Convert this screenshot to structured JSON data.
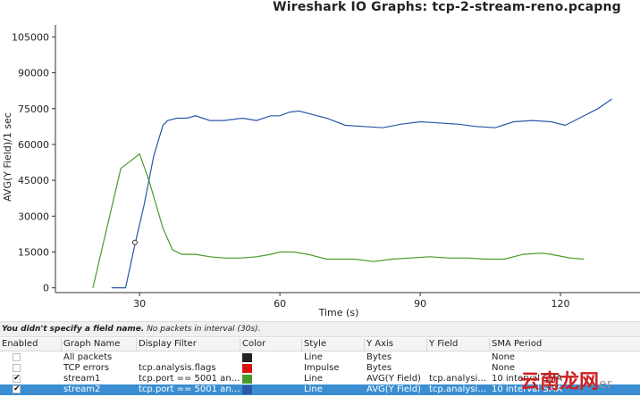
{
  "window": {
    "title": "Wireshark IO Graphs: tcp-2-stream-reno.pcapng"
  },
  "chart_data": {
    "type": "line",
    "xlabel": "Time (s)",
    "ylabel": "AVG(Y Field)/1 sec",
    "xlim": [
      12,
      137
    ],
    "ylim": [
      -2000,
      110000
    ],
    "x_ticks": [
      30,
      60,
      90,
      120
    ],
    "y_ticks": [
      0,
      15000,
      30000,
      45000,
      60000,
      75000,
      90000,
      105000
    ],
    "grid": false,
    "series": [
      {
        "name": "stream1",
        "color": "#4a9a2a",
        "x": [
          20,
          26,
          28,
          30,
          32,
          35,
          37,
          39,
          42,
          45,
          48,
          52,
          55,
          58,
          60,
          63,
          66,
          70,
          73,
          76,
          80,
          84,
          88,
          92,
          96,
          100,
          104,
          108,
          112,
          116,
          118,
          122,
          125
        ],
        "y": [
          0,
          50000,
          53000,
          56000,
          45000,
          25000,
          16000,
          14000,
          14000,
          13000,
          12500,
          12500,
          13000,
          14000,
          15000,
          15000,
          14000,
          12000,
          12000,
          12000,
          11000,
          12000,
          12500,
          13000,
          12500,
          12500,
          12000,
          12000,
          14000,
          14500,
          14000,
          12500,
          12000
        ]
      },
      {
        "name": "stream2",
        "color": "#2b58a8",
        "x": [
          24,
          27,
          29,
          31,
          33,
          35,
          36,
          38,
          40,
          42,
          45,
          48,
          52,
          55,
          58,
          60,
          62,
          64,
          66,
          68,
          70,
          74,
          78,
          82,
          86,
          90,
          94,
          98,
          102,
          106,
          110,
          114,
          118,
          121,
          124,
          128,
          131
        ],
        "y": [
          0,
          0,
          18000,
          35000,
          55000,
          68000,
          70000,
          71000,
          71000,
          72000,
          70000,
          70000,
          71000,
          70000,
          72000,
          72000,
          73500,
          74000,
          73000,
          72000,
          71000,
          68000,
          67500,
          67000,
          68500,
          69500,
          69000,
          68500,
          67500,
          67000,
          69500,
          70000,
          69500,
          68000,
          71000,
          75000,
          79000
        ]
      }
    ],
    "marker": {
      "x": 29,
      "y": 19000
    }
  },
  "status": {
    "bold_text": "You didn't specify a field name.",
    "italic_text": " No packets in interval (30s)."
  },
  "table": {
    "headers": {
      "enabled": "Enabled",
      "graph_name": "Graph Name",
      "display_filter": "Display Filter",
      "color": "Color",
      "style": "Style",
      "y_axis": "Y Axis",
      "y_field": "Y Field",
      "sma_period": "SMA Period"
    },
    "rows": [
      {
        "enabled": false,
        "graph_name": "All packets",
        "display_filter": "",
        "color": "#222222",
        "style": "Line",
        "y_axis": "Bytes",
        "y_field": "",
        "sma_period": "None",
        "selected": false
      },
      {
        "enabled": false,
        "graph_name": "TCP errors",
        "display_filter": "tcp.analysis.flags",
        "color": "#e01010",
        "style": "Impulse",
        "y_axis": "Bytes",
        "y_field": "",
        "sma_period": "None",
        "selected": false
      },
      {
        "enabled": true,
        "graph_name": "stream1",
        "display_filter": "tcp.port == 5001 and ...",
        "color": "#4a9a2a",
        "style": "Line",
        "y_axis": "AVG(Y Field)",
        "y_field": "tcp.analysis...",
        "sma_period": "10 interval SMA",
        "selected": false
      },
      {
        "enabled": true,
        "graph_name": "stream2",
        "display_filter": "tcp.port == 5001 and ...",
        "color": "#2b58a8",
        "style": "Line",
        "y_axis": "AVG(Y Field)",
        "y_field": "tcp.analysis...",
        "sma_period": "10 interval SMA",
        "selected": true
      }
    ]
  },
  "watermark": {
    "text": "云南龙网",
    "suffix": "er"
  }
}
